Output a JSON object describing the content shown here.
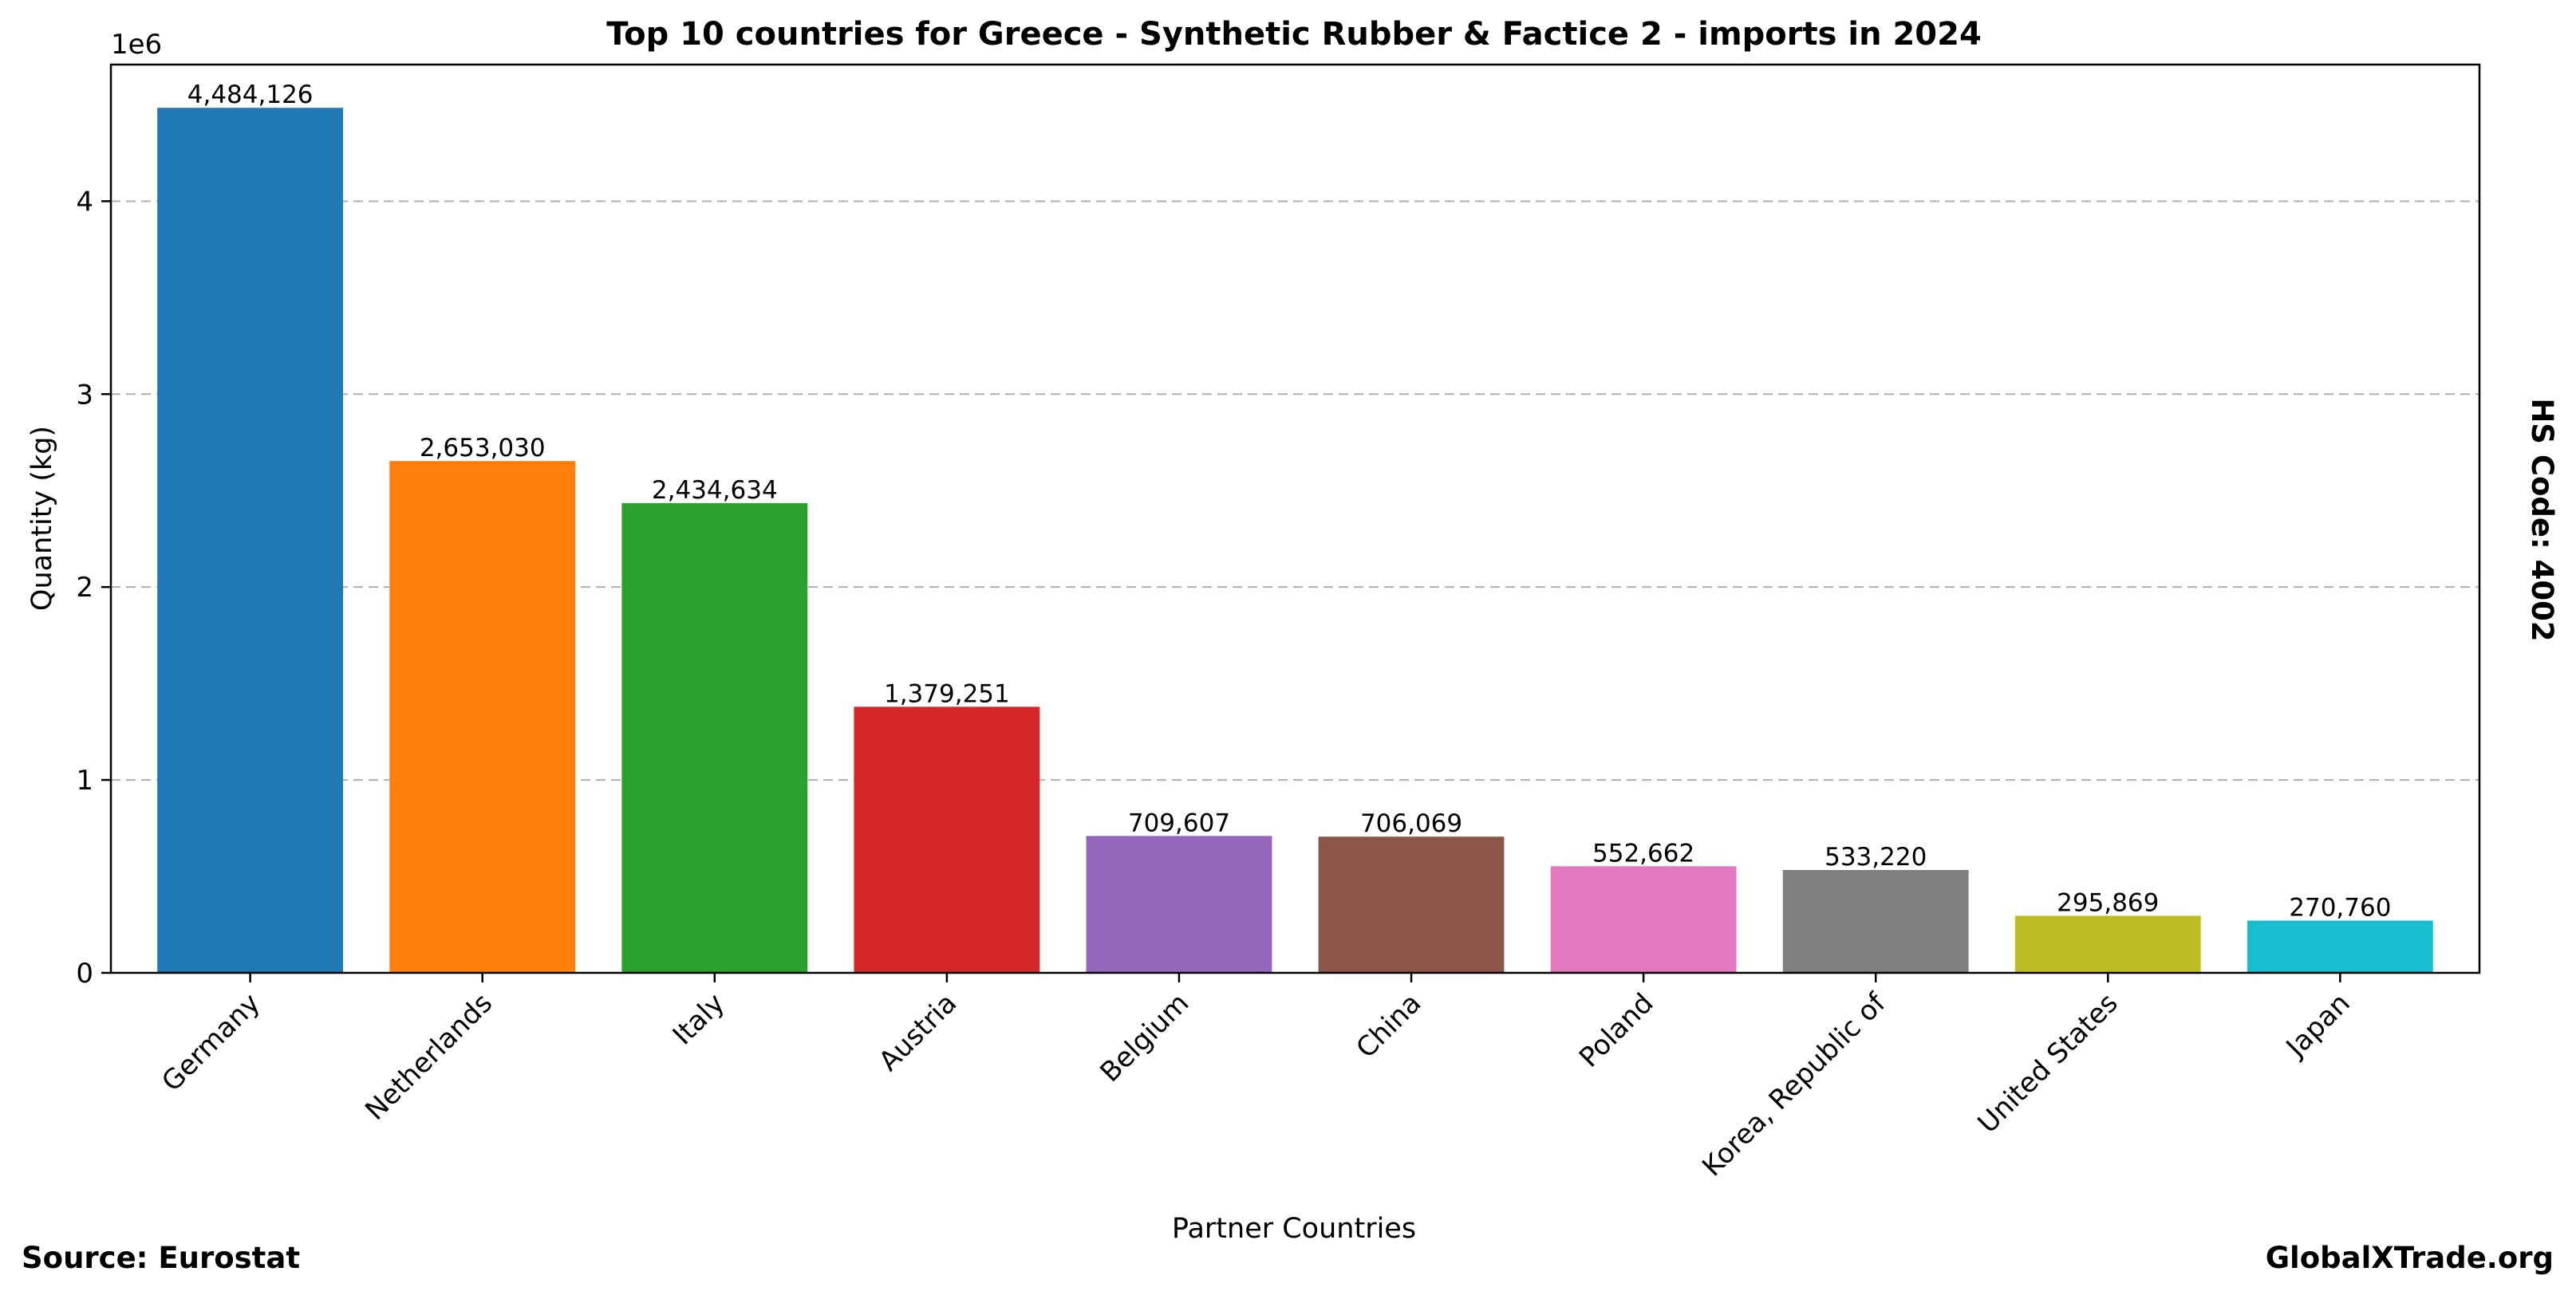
{
  "footer": {
    "source": "Source: Eurostat",
    "brand": "GlobalXTrade.org"
  },
  "side_note": "HS Code: 4002",
  "chart_data": {
    "type": "bar",
    "title": "Top 10 countries for Greece - Synthetic Rubber & Factice 2 - imports in 2024",
    "xlabel": "Partner Countries",
    "ylabel": "Quantity (kg)",
    "y_offset_label": "1e6",
    "ylim": [
      0,
      4708332
    ],
    "yticks": [
      0,
      1000000,
      2000000,
      3000000,
      4000000
    ],
    "ytick_labels": [
      "0",
      "1",
      "2",
      "3",
      "4"
    ],
    "grid": "y-dashed",
    "categories": [
      "Germany",
      "Netherlands",
      "Italy",
      "Austria",
      "Belgium",
      "China",
      "Poland",
      "Korea, Republic of",
      "United States",
      "Japan"
    ],
    "values": [
      4484126,
      2653030,
      2434634,
      1379251,
      709607,
      706069,
      552662,
      533220,
      295869,
      270760
    ],
    "value_labels": [
      "4,484,126",
      "2,653,030",
      "2,434,634",
      "1,379,251",
      "709,607",
      "706,069",
      "552,662",
      "533,220",
      "295,869",
      "270,760"
    ],
    "colors": [
      "#1f77b4",
      "#ff7f0e",
      "#2ca02c",
      "#d62728",
      "#9467bd",
      "#8c564b",
      "#e377c2",
      "#7f7f7f",
      "#bcbd22",
      "#17becf"
    ]
  }
}
